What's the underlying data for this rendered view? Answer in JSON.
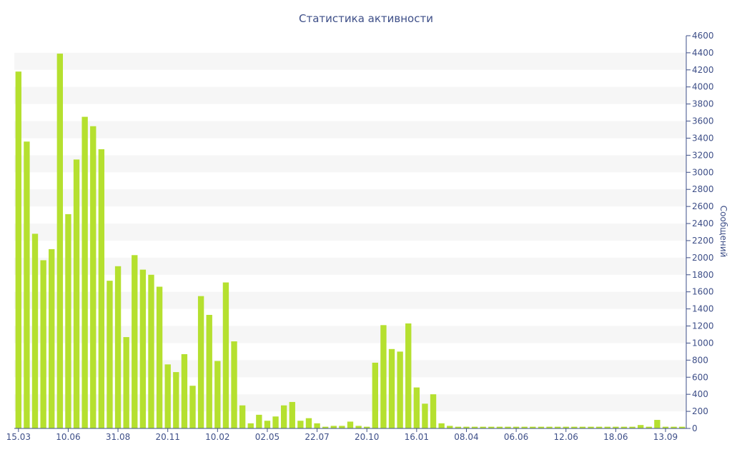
{
  "chart_data": {
    "type": "bar",
    "title": "Статистика активности",
    "ylabel": "Сообщений",
    "xlabel": "",
    "ylim": [
      0,
      4600
    ],
    "yticks": [
      0,
      200,
      400,
      600,
      800,
      1000,
      1200,
      1400,
      1600,
      1800,
      2000,
      2200,
      2400,
      2600,
      2800,
      3000,
      3200,
      3400,
      3600,
      3800,
      4000,
      4200,
      4400,
      4600
    ],
    "y_axis_side": "right",
    "grid": "alternating horizontal bands",
    "legend": "none",
    "xtick_labels": [
      {
        "index": 0,
        "label": "15.03"
      },
      {
        "index": 6,
        "label": "10.06"
      },
      {
        "index": 12,
        "label": "31.08"
      },
      {
        "index": 18,
        "label": "20.11"
      },
      {
        "index": 24,
        "label": "10.02"
      },
      {
        "index": 30,
        "label": "02.05"
      },
      {
        "index": 36,
        "label": "22.07"
      },
      {
        "index": 42,
        "label": "20.10"
      },
      {
        "index": 48,
        "label": "16.01"
      },
      {
        "index": 54,
        "label": "08.04"
      },
      {
        "index": 60,
        "label": "06.06"
      },
      {
        "index": 66,
        "label": "12.06"
      },
      {
        "index": 72,
        "label": "18.06"
      },
      {
        "index": 78,
        "label": "13.09"
      }
    ],
    "values": [
      4180,
      3360,
      2280,
      1970,
      2100,
      4390,
      2510,
      3150,
      3650,
      3540,
      3270,
      1730,
      1900,
      1070,
      2030,
      1860,
      1800,
      1660,
      750,
      660,
      870,
      500,
      1550,
      1330,
      790,
      1710,
      1020,
      270,
      60,
      160,
      90,
      140,
      270,
      310,
      90,
      120,
      60,
      20,
      30,
      30,
      80,
      30,
      20,
      770,
      1210,
      930,
      900,
      1230,
      480,
      290,
      400,
      60,
      30,
      20,
      20,
      20,
      20,
      20,
      20,
      20,
      20,
      20,
      20,
      20,
      20,
      20,
      20,
      20,
      20,
      20,
      20,
      20,
      20,
      20,
      20,
      40,
      20,
      100,
      20,
      20,
      20
    ],
    "colors": {
      "bar": "#b5e02f",
      "text": "#3e4f88",
      "band": "#f6f6f6",
      "axis": "#3e4f88"
    }
  }
}
